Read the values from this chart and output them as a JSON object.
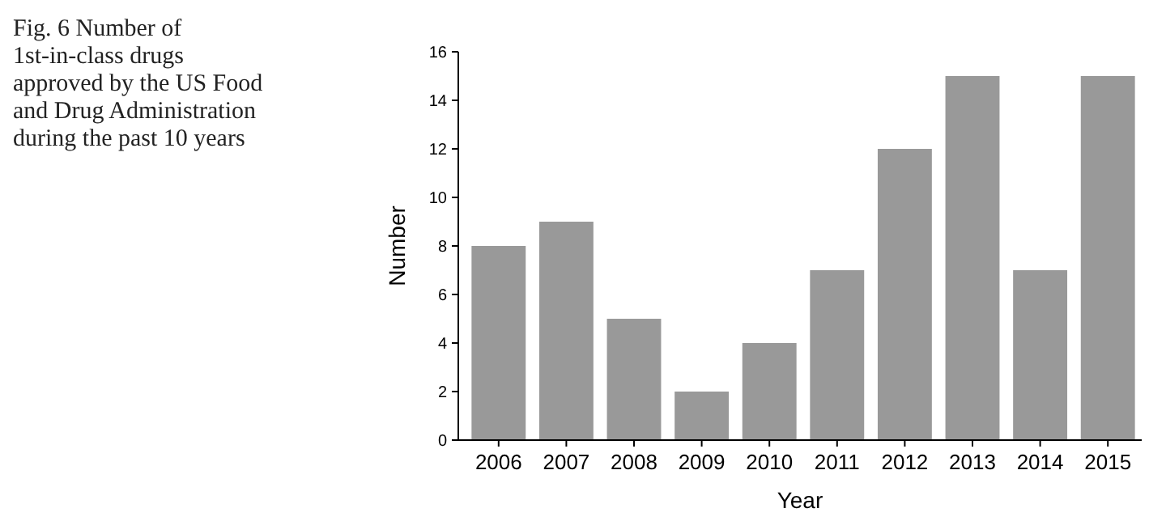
{
  "chart_data": {
    "type": "bar",
    "title": "Fig. 6 Number of 1st-in-class drugs approved by the US Food and Drug Administration during the past 10 years",
    "xlabel": "Year",
    "ylabel": "Number",
    "categories": [
      "2006",
      "2007",
      "2008",
      "2009",
      "2010",
      "2011",
      "2012",
      "2013",
      "2014",
      "2015"
    ],
    "values": [
      8,
      9,
      5,
      2,
      4,
      7,
      12,
      15,
      7,
      15
    ],
    "color": "#999999",
    "ylim": [
      0,
      16
    ],
    "yticks": [
      0,
      2,
      4,
      6,
      8,
      10,
      12,
      14,
      16
    ],
    "grid": false
  }
}
